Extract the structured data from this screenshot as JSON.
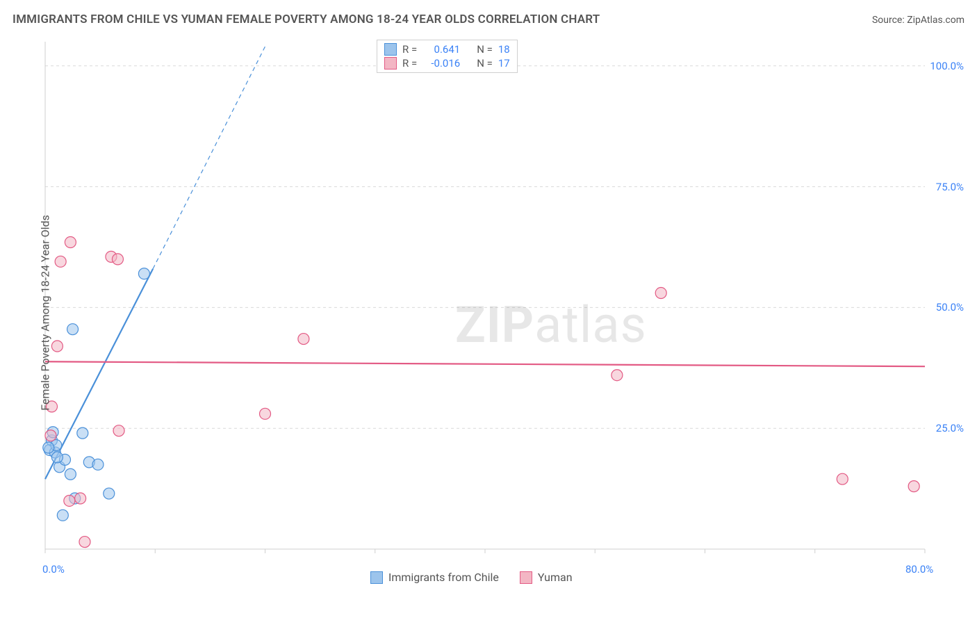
{
  "title": "IMMIGRANTS FROM CHILE VS YUMAN FEMALE POVERTY AMONG 18-24 YEAR OLDS CORRELATION CHART",
  "source": "Source: ZipAtlas.com",
  "ylabel": "Female Poverty Among 18-24 Year Olds",
  "watermark_bold": "ZIP",
  "watermark_rest": "atlas",
  "chart": {
    "type": "scatter",
    "xlim": [
      0,
      80
    ],
    "ylim": [
      0,
      105
    ],
    "x_ticks": [
      0,
      10,
      20,
      30,
      40,
      50,
      60,
      70,
      80
    ],
    "x_tick_labels": {
      "0": "0.0%",
      "80": "80.0%"
    },
    "y_gridlines": [
      25,
      50,
      75,
      100
    ],
    "y_tick_labels": {
      "25": "25.0%",
      "50": "50.0%",
      "75": "75.0%",
      "100": "100.0%"
    },
    "grid_color": "#d9d9d9",
    "axis_color": "#cfcfcf",
    "background_color": "#ffffff",
    "marker_radius": 8,
    "marker_opacity": 0.55,
    "series": [
      {
        "name": "Immigrants from Chile",
        "fill": "#9cc4ec",
        "stroke": "#4a90d9",
        "R": "0.641",
        "N": "18",
        "points": [
          [
            0.4,
            20.5
          ],
          [
            0.6,
            22.5
          ],
          [
            0.7,
            24.2
          ],
          [
            0.9,
            20.0
          ],
          [
            1.0,
            21.5
          ],
          [
            1.3,
            17.0
          ],
          [
            1.6,
            7.0
          ],
          [
            1.8,
            18.5
          ],
          [
            2.3,
            15.5
          ],
          [
            2.5,
            45.5
          ],
          [
            2.7,
            10.5
          ],
          [
            3.4,
            24.0
          ],
          [
            4.0,
            18.0
          ],
          [
            4.8,
            17.5
          ],
          [
            5.8,
            11.5
          ],
          [
            9.0,
            57.0
          ],
          [
            0.3,
            21.0
          ],
          [
            1.1,
            19.0
          ]
        ],
        "trend": {
          "x1": 0.0,
          "y1": 14.5,
          "x2": 9.8,
          "y2": 58.0,
          "dash_to_x": 20.0,
          "dash_to_y": 104.0,
          "width": 2.2
        }
      },
      {
        "name": "Yuman",
        "fill": "#f3b6c4",
        "stroke": "#e35a84",
        "R": "-0.016",
        "N": "17",
        "points": [
          [
            0.5,
            23.5
          ],
          [
            0.6,
            29.5
          ],
          [
            1.1,
            42.0
          ],
          [
            1.4,
            59.5
          ],
          [
            2.2,
            10.0
          ],
          [
            2.3,
            63.5
          ],
          [
            3.2,
            10.5
          ],
          [
            3.6,
            1.5
          ],
          [
            6.0,
            60.5
          ],
          [
            6.6,
            60.0
          ],
          [
            6.7,
            24.5
          ],
          [
            20.0,
            28.0
          ],
          [
            23.5,
            43.5
          ],
          [
            52.0,
            36.0
          ],
          [
            56.0,
            53.0
          ],
          [
            72.5,
            14.5
          ],
          [
            79.0,
            13.0
          ]
        ],
        "trend": {
          "x1": 0.0,
          "y1": 38.8,
          "x2": 80.0,
          "y2": 37.8,
          "width": 2.2
        }
      }
    ]
  },
  "legend_bottom": [
    {
      "label": "Immigrants from Chile",
      "fill": "#9cc4ec",
      "stroke": "#4a90d9"
    },
    {
      "label": "Yuman",
      "fill": "#f3b6c4",
      "stroke": "#e35a84"
    }
  ],
  "legend_top": {
    "rows": [
      {
        "fill": "#9cc4ec",
        "stroke": "#4a90d9",
        "R_label": "R =",
        "R": "0.641",
        "N_label": "N =",
        "N": "18"
      },
      {
        "fill": "#f3b6c4",
        "stroke": "#e35a84",
        "R_label": "R =",
        "R": "-0.016",
        "N_label": "N =",
        "N": "17"
      }
    ]
  }
}
